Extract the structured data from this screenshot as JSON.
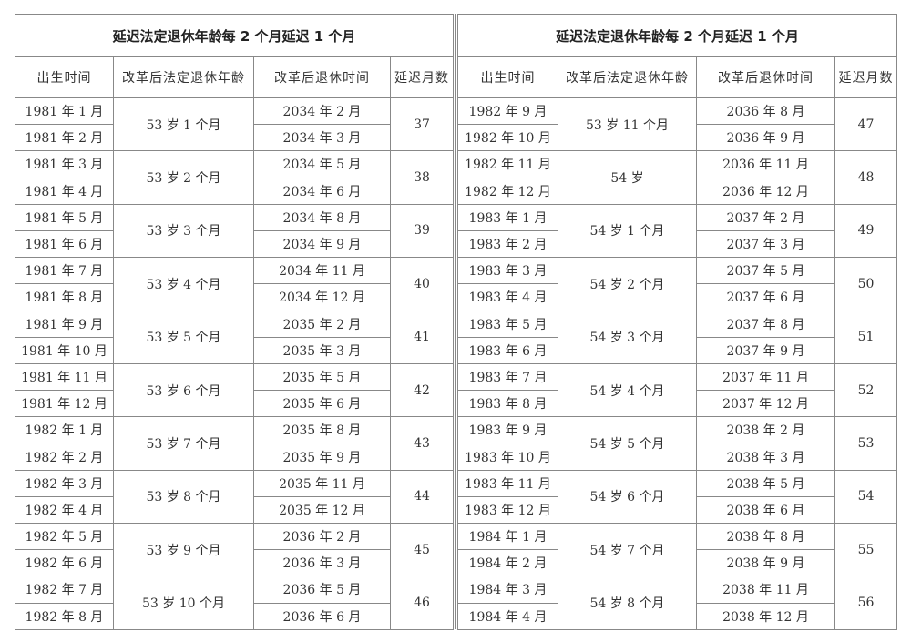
{
  "tables": [
    {
      "title": "延迟法定退休年龄每 2 个月延迟 1 个月",
      "headers": [
        "出生时间",
        "改革后法定退休年龄",
        "改革后退休时间",
        "延迟月数"
      ],
      "groups": [
        {
          "births": [
            "1981 年 1 月",
            "1981 年 2 月"
          ],
          "age": "53 岁 1 个月",
          "retire": [
            "2034 年 2 月",
            "2034 年 3 月"
          ],
          "months": "37"
        },
        {
          "births": [
            "1981 年 3 月",
            "1981 年 4 月"
          ],
          "age": "53 岁 2 个月",
          "retire": [
            "2034 年 5 月",
            "2034 年 6 月"
          ],
          "months": "38"
        },
        {
          "births": [
            "1981 年 5 月",
            "1981 年 6 月"
          ],
          "age": "53 岁 3 个月",
          "retire": [
            "2034 年 8 月",
            "2034 年 9 月"
          ],
          "months": "39"
        },
        {
          "births": [
            "1981 年 7 月",
            "1981 年 8 月"
          ],
          "age": "53 岁 4 个月",
          "retire": [
            "2034 年 11 月",
            "2034 年 12 月"
          ],
          "months": "40"
        },
        {
          "births": [
            "1981 年 9 月",
            "1981 年 10 月"
          ],
          "age": "53 岁 5 个月",
          "retire": [
            "2035 年 2 月",
            "2035 年 3 月"
          ],
          "months": "41"
        },
        {
          "births": [
            "1981 年 11 月",
            "1981 年 12 月"
          ],
          "age": "53 岁 6 个月",
          "retire": [
            "2035 年 5 月",
            "2035 年 6 月"
          ],
          "months": "42"
        },
        {
          "births": [
            "1982 年 1 月",
            "1982 年 2 月"
          ],
          "age": "53 岁 7 个月",
          "retire": [
            "2035 年 8 月",
            "2035 年 9 月"
          ],
          "months": "43"
        },
        {
          "births": [
            "1982 年 3 月",
            "1982 年 4 月"
          ],
          "age": "53 岁 8 个月",
          "retire": [
            "2035 年 11 月",
            "2035 年 12 月"
          ],
          "months": "44"
        },
        {
          "births": [
            "1982 年 5 月",
            "1982 年 6 月"
          ],
          "age": "53 岁 9 个月",
          "retire": [
            "2036 年 2 月",
            "2036 年 3 月"
          ],
          "months": "45"
        },
        {
          "births": [
            "1982 年 7 月",
            "1982 年 8 月"
          ],
          "age": "53 岁 10 个月",
          "retire": [
            "2036 年 5 月",
            "2036 年 6 月"
          ],
          "months": "46"
        }
      ]
    },
    {
      "title": "延迟法定退休年龄每 2 个月延迟 1 个月",
      "headers": [
        "出生时间",
        "改革后法定退休年龄",
        "改革后退休时间",
        "延迟月数"
      ],
      "groups": [
        {
          "births": [
            "1982 年 9 月",
            "1982 年 10 月"
          ],
          "age": "53 岁 11 个月",
          "retire": [
            "2036 年 8 月",
            "2036 年 9 月"
          ],
          "months": "47"
        },
        {
          "births": [
            "1982 年 11 月",
            "1982 年 12 月"
          ],
          "age": "54 岁",
          "retire": [
            "2036 年 11 月",
            "2036 年 12 月"
          ],
          "months": "48"
        },
        {
          "births": [
            "1983 年 1 月",
            "1983 年 2 月"
          ],
          "age": "54 岁 1 个月",
          "retire": [
            "2037 年 2 月",
            "2037 年 3 月"
          ],
          "months": "49"
        },
        {
          "births": [
            "1983 年 3 月",
            "1983 年 4 月"
          ],
          "age": "54 岁 2 个月",
          "retire": [
            "2037 年 5 月",
            "2037 年 6 月"
          ],
          "months": "50"
        },
        {
          "births": [
            "1983 年 5 月",
            "1983 年 6 月"
          ],
          "age": "54 岁 3 个月",
          "retire": [
            "2037 年 8 月",
            "2037 年 9 月"
          ],
          "months": "51"
        },
        {
          "births": [
            "1983 年 7 月",
            "1983 年 8 月"
          ],
          "age": "54 岁 4 个月",
          "retire": [
            "2037 年 11 月",
            "2037 年 12 月"
          ],
          "months": "52"
        },
        {
          "births": [
            "1983 年 9 月",
            "1983 年 10 月"
          ],
          "age": "54 岁 5 个月",
          "retire": [
            "2038 年 2 月",
            "2038 年 3 月"
          ],
          "months": "53"
        },
        {
          "births": [
            "1983 年 11 月",
            "1983 年 12 月"
          ],
          "age": "54 岁 6 个月",
          "retire": [
            "2038 年 5 月",
            "2038 年 6 月"
          ],
          "months": "54"
        },
        {
          "births": [
            "1984 年 1 月",
            "1984 年 2 月"
          ],
          "age": "54 岁 7 个月",
          "retire": [
            "2038 年 8 月",
            "2038 年 9 月"
          ],
          "months": "55"
        },
        {
          "births": [
            "1984 年 3 月",
            "1984 年 4 月"
          ],
          "age": "54 岁 8 个月",
          "retire": [
            "2038 年 11 月",
            "2038 年 12 月"
          ],
          "months": "56"
        }
      ]
    }
  ]
}
